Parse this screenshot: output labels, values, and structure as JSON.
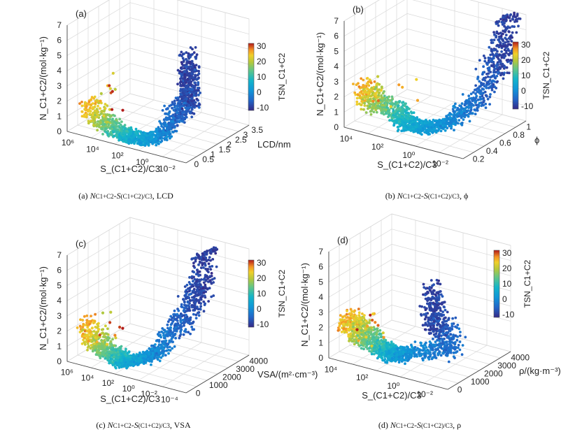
{
  "figure": {
    "panels": [
      {
        "id": "a",
        "letter": "(a)",
        "caption": "(a) N_C1+C2-S_(C1+C2)/C3, LCD",
        "caption_parts": [
          "(a) ",
          "N",
          "C1+C2",
          "-",
          "S",
          "(C1+C2)/C3",
          ", LCD"
        ],
        "z_label": "N_C1+C2/(mol·kg⁻¹)",
        "x_label": "S_(C1+C2)/C3",
        "y_label": "LCD/nm",
        "colorbar_label": "TSN_C1+C2",
        "colorbar_ticks": [
          "30",
          "20",
          "10",
          "0",
          "-10"
        ],
        "z_ticks": [
          "0",
          "1",
          "2",
          "3",
          "4",
          "5",
          "6",
          "7"
        ],
        "x_ticks": [
          "10⁶",
          "10⁴",
          "10²",
          "10⁰",
          "10⁻²"
        ],
        "y_ticks": [
          "0",
          "0.5",
          "1",
          "1.5",
          "2",
          "2.5",
          "3",
          "3.5"
        ]
      },
      {
        "id": "b",
        "letter": "(b)",
        "caption": "(b) N_C1+C2-S_(C1+C2)/C3, ϕ",
        "caption_parts": [
          "(b) ",
          "N",
          "C1+C2",
          "-",
          "S",
          "(C1+C2)/C3",
          ", ϕ"
        ],
        "z_label": "N_C1+C2/(mol·kg⁻¹)",
        "x_label": "S_(C1+C2)/C3",
        "y_label": "ϕ",
        "colorbar_label": "TSN_C1+C2",
        "colorbar_ticks": [
          "30",
          "20",
          "10",
          "0",
          "-10"
        ],
        "z_ticks": [
          "0",
          "1",
          "2",
          "3",
          "4",
          "5",
          "6",
          "7"
        ],
        "x_ticks": [
          "10⁴",
          "10²",
          "10⁰",
          "10⁻²"
        ],
        "y_ticks": [
          "0.2",
          "0.4",
          "0.6",
          "0.8",
          "1"
        ]
      },
      {
        "id": "c",
        "letter": "(c)",
        "caption": "(c) N_C1+C2-S_(C1+C2)/C3, VSA",
        "caption_parts": [
          "(c) ",
          "N",
          "C1+C2",
          "-",
          "S",
          "(C1+C2)/C3",
          ", VSA"
        ],
        "z_label": "N_C1+C2/(mol·kg⁻¹)",
        "x_label": "S_(C1+C2)/C3",
        "y_label": "VSA/(m²·cm⁻³)",
        "colorbar_label": "TSN_C1+C2",
        "colorbar_ticks": [
          "30",
          "20",
          "10",
          "0",
          "-10"
        ],
        "z_ticks": [
          "0",
          "1",
          "2",
          "3",
          "4",
          "5",
          "6",
          "7"
        ],
        "x_ticks": [
          "10⁶",
          "10⁴",
          "10²",
          "10⁰",
          "10⁻²",
          "10⁻⁴"
        ],
        "y_ticks": [
          "0",
          "1000",
          "2000",
          "3000",
          "4000"
        ]
      },
      {
        "id": "d",
        "letter": "(d)",
        "caption": "(d) N_C1+C2-S_(C1+C2)/C3, ρ",
        "caption_parts": [
          "(d) ",
          "N",
          "C1+C2",
          "-",
          "S",
          "(C1+C2)/C3",
          ", ρ"
        ],
        "z_label": "N_C1+C2/(mol·kg⁻¹)",
        "x_label": "S_(C1+C2)/C3",
        "y_label": "ρ/(kg·m⁻³)",
        "colorbar_label": "TSN_C1+C2",
        "colorbar_ticks": [
          "30",
          "20",
          "10",
          "0",
          "-10"
        ],
        "z_ticks": [
          "0",
          "1",
          "2",
          "3",
          "4",
          "5",
          "6",
          "7"
        ],
        "x_ticks": [
          "10⁴",
          "10²",
          "10⁰",
          "10⁻²"
        ],
        "y_ticks": [
          "0",
          "1000",
          "2000",
          "3000",
          "4000"
        ]
      }
    ]
  },
  "chart_data": [
    {
      "type": "scatter",
      "panel": "a",
      "title": "",
      "xlabel": "S(C1+C2)/C3",
      "ylabel": "LCD/nm",
      "zlabel": "NC1+C2/(mol·kg-1)",
      "x_scale": "log",
      "xlim": [
        0.01,
        1000000
      ],
      "ylim": [
        0,
        3.5
      ],
      "zlim": [
        0,
        7
      ],
      "color_var": "TSN C1+C2",
      "color_lim": [
        -15,
        30
      ],
      "colormap": "parula-like",
      "grid": true,
      "legend": "colorbar-right",
      "series": [
        {
          "name": "",
          "points": [
            {
              "x": 0.03,
              "y": 0.5,
              "z": 4.5,
              "c": -12
            },
            {
              "x": 0.05,
              "y": 0.7,
              "z": 5.2,
              "c": -13
            },
            {
              "x": 0.1,
              "y": 1.0,
              "z": 3.2,
              "c": -10
            },
            {
              "x": 0.5,
              "y": 0.5,
              "z": 2.0,
              "c": -7
            },
            {
              "x": 1,
              "y": 0.3,
              "z": 1.0,
              "c": -3
            },
            {
              "x": 10,
              "y": 0.2,
              "z": 0.6,
              "c": 0
            },
            {
              "x": 100,
              "y": 0.3,
              "z": 0.4,
              "c": 3
            },
            {
              "x": 1000,
              "y": 0.4,
              "z": 0.5,
              "c": 8
            },
            {
              "x": 10000,
              "y": 0.3,
              "z": 1.0,
              "c": 15
            },
            {
              "x": 100000,
              "y": 0.2,
              "z": 2.0,
              "c": 25
            }
          ]
        }
      ]
    },
    {
      "type": "scatter",
      "panel": "b",
      "title": "",
      "xlabel": "S(C1+C2)/C3",
      "ylabel": "ϕ",
      "zlabel": "NC1+C2/(mol·kg-1)",
      "x_scale": "log",
      "xlim": [
        0.01,
        100000
      ],
      "ylim": [
        0.1,
        1
      ],
      "zlim": [
        0,
        7
      ],
      "color_var": "TSN C1+C2",
      "color_lim": [
        -15,
        30
      ],
      "grid": true,
      "legend": "colorbar-right",
      "series": [
        {
          "name": "",
          "points": [
            {
              "x": 0.03,
              "y": 0.9,
              "z": 6.5,
              "c": -13
            },
            {
              "x": 0.05,
              "y": 0.8,
              "z": 5.0,
              "c": -12
            },
            {
              "x": 0.1,
              "y": 0.6,
              "z": 2.5,
              "c": -8
            },
            {
              "x": 1,
              "y": 0.4,
              "z": 1.0,
              "c": -3
            },
            {
              "x": 10,
              "y": 0.3,
              "z": 0.6,
              "c": 0
            },
            {
              "x": 100,
              "y": 0.3,
              "z": 0.5,
              "c": 3
            },
            {
              "x": 1000,
              "y": 0.4,
              "z": 0.8,
              "c": 8
            },
            {
              "x": 10000,
              "y": 0.3,
              "z": 1.4,
              "c": 15
            },
            {
              "x": 50000,
              "y": 0.3,
              "z": 2.2,
              "c": 25
            }
          ]
        }
      ]
    },
    {
      "type": "scatter",
      "panel": "c",
      "title": "",
      "xlabel": "S(C1+C2)/C3",
      "ylabel": "VSA/(m²·cm-3)",
      "zlabel": "NC1+C2/(mol·kg-1)",
      "x_scale": "log",
      "xlim": [
        0.0001,
        1000000
      ],
      "ylim": [
        0,
        4000
      ],
      "zlim": [
        0,
        7
      ],
      "color_var": "TSN C1+C2",
      "color_lim": [
        -15,
        30
      ],
      "grid": true,
      "legend": "colorbar-right",
      "series": [
        {
          "name": "",
          "points": [
            {
              "x": 0.01,
              "y": 3000,
              "z": 6.8,
              "c": -13
            },
            {
              "x": 0.02,
              "y": 2500,
              "z": 5.0,
              "c": -12
            },
            {
              "x": 0.1,
              "y": 2000,
              "z": 3.0,
              "c": -9
            },
            {
              "x": 1,
              "y": 1200,
              "z": 1.2,
              "c": -4
            },
            {
              "x": 10,
              "y": 800,
              "z": 0.6,
              "c": 0
            },
            {
              "x": 100,
              "y": 600,
              "z": 0.4,
              "c": 3
            },
            {
              "x": 1000,
              "y": 800,
              "z": 0.6,
              "c": 8
            },
            {
              "x": 10000,
              "y": 600,
              "z": 1.2,
              "c": 15
            },
            {
              "x": 100000,
              "y": 400,
              "z": 2.3,
              "c": 25
            }
          ]
        }
      ]
    },
    {
      "type": "scatter",
      "panel": "d",
      "title": "",
      "xlabel": "S(C1+C2)/C3",
      "ylabel": "ρ/(kg·m-3)",
      "zlabel": "NC1+C2/(mol·kg-1)",
      "x_scale": "log",
      "xlim": [
        0.01,
        100000
      ],
      "ylim": [
        0,
        4000
      ],
      "zlim": [
        0,
        7
      ],
      "color_var": "TSN C1+C2",
      "color_lim": [
        -15,
        30
      ],
      "grid": true,
      "legend": "colorbar-right",
      "series": [
        {
          "name": "",
          "points": [
            {
              "x": 1,
              "y": 1000,
              "z": 4.5,
              "c": -13
            },
            {
              "x": 0.5,
              "y": 1200,
              "z": 3.5,
              "c": -11
            },
            {
              "x": 0.1,
              "y": 1500,
              "z": 1.5,
              "c": -7
            },
            {
              "x": 10,
              "y": 800,
              "z": 1.0,
              "c": -3
            },
            {
              "x": 100,
              "y": 800,
              "z": 0.6,
              "c": 1
            },
            {
              "x": 1000,
              "y": 1000,
              "z": 0.8,
              "c": 8
            },
            {
              "x": 10000,
              "y": 1000,
              "z": 1.3,
              "c": 15
            },
            {
              "x": 50000,
              "y": 900,
              "z": 2.1,
              "c": 25
            }
          ]
        }
      ]
    }
  ]
}
